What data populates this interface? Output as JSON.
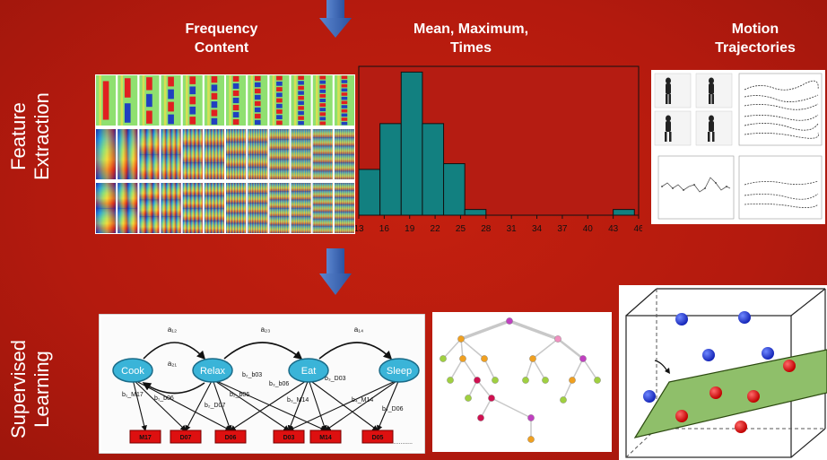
{
  "sections": {
    "feature_extraction": {
      "line1": "Feature",
      "line2": "Extraction"
    },
    "supervised_learning": {
      "line1": "Supervised",
      "line2": "Learning"
    }
  },
  "columns": {
    "frequency": {
      "line1": "Frequency",
      "line2": "Content"
    },
    "mean": {
      "line1": "Mean, Maximum,",
      "line2": "Times"
    },
    "motion": {
      "line1": "Motion",
      "line2": "Trajectories"
    }
  },
  "chart_data": {
    "type": "bar",
    "bin_edges": [
      13,
      15.5,
      18,
      20.5,
      23,
      25.5,
      28,
      30.5,
      33,
      35.5,
      38,
      40.5,
      43,
      45.5
    ],
    "values": [
      8,
      16,
      25,
      16,
      9,
      1,
      0,
      0,
      0,
      0,
      0,
      0,
      1
    ],
    "tick_labels": [
      "13",
      "16",
      "19",
      "22",
      "25",
      "28",
      "31",
      "34",
      "37",
      "40",
      "43",
      "46"
    ],
    "xlim": [
      13,
      46
    ],
    "ylim": [
      0,
      26
    ],
    "bar_color": "#128080"
  },
  "hmm": {
    "states": [
      "Cook",
      "Relax",
      "Eat",
      "Sleep"
    ],
    "transitions": [
      "a₁₂",
      "a₂₁",
      "a₂₃",
      "a₁₄"
    ],
    "emissions": [
      "b₁_M17",
      "b₁_b06",
      "b₂_D07",
      "b₂_b03",
      "b₂_b06",
      "b₃_b06",
      "b₃_M14",
      "b₃_D03",
      "b₄_M14",
      "b₄_D06"
    ],
    "observations": [
      "M17",
      "D07",
      "D06",
      "D03",
      "M14",
      "D05"
    ],
    "ellipsis": "..........."
  },
  "colors": {
    "background": "#b51c12",
    "arrow": "#3a64b0",
    "state_fill": "#3ab4d8",
    "obs_fill": "#dd1010",
    "plane": "#8fbf6a",
    "ball_blue": "#1626b8",
    "ball_red": "#c00000"
  }
}
